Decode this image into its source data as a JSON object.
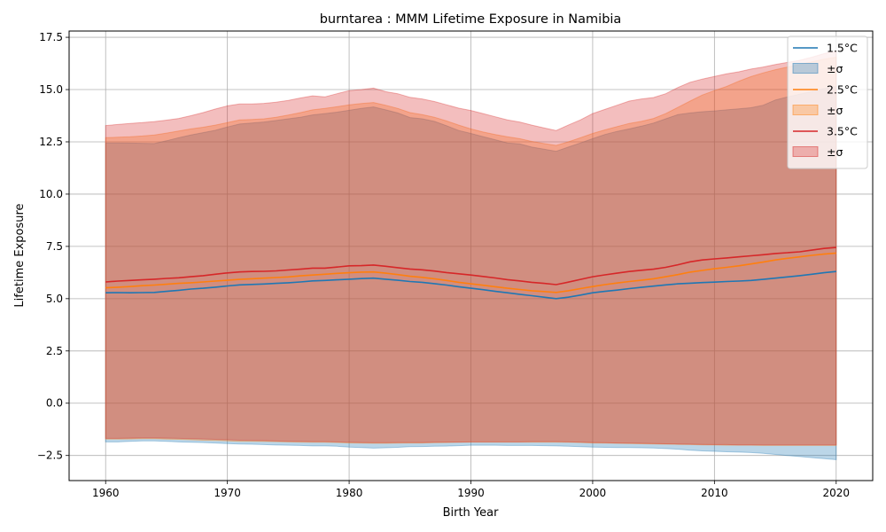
{
  "chart_data": {
    "type": "area",
    "title": "burntarea : MMM Lifetime Exposure in Namibia",
    "xlabel": "Birth Year",
    "ylabel": "Lifetime Exposure",
    "xlim": [
      1957,
      2023
    ],
    "ylim": [
      -3.7,
      17.8
    ],
    "xticks": [
      1960,
      1970,
      1980,
      1990,
      2000,
      2010,
      2020
    ],
    "yticks": [
      -2.5,
      0.0,
      2.5,
      5.0,
      7.5,
      10.0,
      12.5,
      15.0,
      17.5
    ],
    "ytick_labels": [
      "−2.5",
      "0.0",
      "2.5",
      "5.0",
      "7.5",
      "10.0",
      "12.5",
      "15.0",
      "17.5"
    ],
    "grid": true,
    "legend_position": "top-right",
    "x": [
      1960,
      1961,
      1962,
      1963,
      1964,
      1965,
      1966,
      1967,
      1968,
      1969,
      1970,
      1971,
      1972,
      1973,
      1974,
      1975,
      1976,
      1977,
      1978,
      1979,
      1980,
      1981,
      1982,
      1983,
      1984,
      1985,
      1986,
      1987,
      1988,
      1989,
      1990,
      1991,
      1992,
      1993,
      1994,
      1995,
      1996,
      1997,
      1998,
      1999,
      2000,
      2001,
      2002,
      2003,
      2004,
      2005,
      2006,
      2007,
      2008,
      2009,
      2010,
      2011,
      2012,
      2013,
      2014,
      2015,
      2016,
      2017,
      2018,
      2019,
      2020
    ],
    "series": [
      {
        "name": "1.5°C",
        "color": "#1f77b4",
        "values": [
          5.28,
          5.29,
          5.28,
          5.29,
          5.3,
          5.35,
          5.4,
          5.46,
          5.5,
          5.55,
          5.61,
          5.66,
          5.68,
          5.7,
          5.73,
          5.76,
          5.8,
          5.85,
          5.87,
          5.9,
          5.93,
          5.96,
          5.98,
          5.93,
          5.88,
          5.82,
          5.78,
          5.72,
          5.65,
          5.57,
          5.5,
          5.43,
          5.35,
          5.28,
          5.21,
          5.14,
          5.07,
          5.0,
          5.07,
          5.17,
          5.28,
          5.35,
          5.41,
          5.48,
          5.54,
          5.6,
          5.66,
          5.71,
          5.74,
          5.77,
          5.79,
          5.82,
          5.84,
          5.87,
          5.92,
          5.98,
          6.04,
          6.1,
          6.17,
          6.24,
          6.3
        ],
        "upper": [
          12.45,
          12.45,
          12.44,
          12.43,
          12.42,
          12.55,
          12.7,
          12.83,
          12.94,
          13.05,
          13.21,
          13.35,
          13.4,
          13.45,
          13.52,
          13.6,
          13.68,
          13.79,
          13.85,
          13.92,
          14.01,
          14.1,
          14.17,
          14.03,
          13.88,
          13.66,
          13.6,
          13.48,
          13.27,
          13.04,
          12.9,
          12.75,
          12.6,
          12.45,
          12.4,
          12.25,
          12.15,
          12.05,
          12.25,
          12.45,
          12.65,
          12.85,
          13.0,
          13.12,
          13.25,
          13.4,
          13.6,
          13.8,
          13.88,
          13.94,
          13.98,
          14.03,
          14.08,
          14.13,
          14.25,
          14.5,
          14.65,
          14.78,
          14.9,
          15.05,
          15.15
        ],
        "lower": [
          -1.85,
          -1.85,
          -1.82,
          -1.8,
          -1.8,
          -1.82,
          -1.85,
          -1.87,
          -1.88,
          -1.9,
          -1.93,
          -1.95,
          -1.96,
          -1.98,
          -2.0,
          -2.01,
          -2.02,
          -2.04,
          -2.04,
          -2.06,
          -2.1,
          -2.12,
          -2.15,
          -2.13,
          -2.11,
          -2.08,
          -2.07,
          -2.06,
          -2.05,
          -2.03,
          -2.01,
          -2.01,
          -2.01,
          -2.02,
          -2.02,
          -2.02,
          -2.03,
          -2.04,
          -2.06,
          -2.08,
          -2.1,
          -2.11,
          -2.12,
          -2.12,
          -2.13,
          -2.14,
          -2.17,
          -2.2,
          -2.25,
          -2.28,
          -2.3,
          -2.32,
          -2.34,
          -2.36,
          -2.4,
          -2.45,
          -2.5,
          -2.55,
          -2.6,
          -2.65,
          -2.7
        ]
      },
      {
        "name": "2.5°C",
        "color": "#ff7f0e",
        "values": [
          5.52,
          5.55,
          5.58,
          5.62,
          5.65,
          5.69,
          5.73,
          5.76,
          5.8,
          5.84,
          5.88,
          5.92,
          5.95,
          5.98,
          6.01,
          6.04,
          6.09,
          6.13,
          6.17,
          6.21,
          6.24,
          6.27,
          6.28,
          6.22,
          6.15,
          6.07,
          6.02,
          5.95,
          5.87,
          5.78,
          5.71,
          5.64,
          5.57,
          5.5,
          5.44,
          5.38,
          5.34,
          5.3,
          5.38,
          5.48,
          5.58,
          5.67,
          5.75,
          5.82,
          5.88,
          5.95,
          6.05,
          6.15,
          6.27,
          6.35,
          6.43,
          6.5,
          6.57,
          6.66,
          6.75,
          6.85,
          6.93,
          7.0,
          7.07,
          7.13,
          7.18
        ],
        "upper": [
          12.7,
          12.72,
          12.74,
          12.78,
          12.83,
          12.92,
          13.02,
          13.12,
          13.2,
          13.3,
          13.42,
          13.55,
          13.57,
          13.6,
          13.68,
          13.78,
          13.9,
          14.03,
          14.1,
          14.18,
          14.27,
          14.33,
          14.38,
          14.25,
          14.1,
          13.9,
          13.8,
          13.68,
          13.5,
          13.3,
          13.12,
          12.97,
          12.85,
          12.74,
          12.65,
          12.52,
          12.42,
          12.33,
          12.5,
          12.7,
          12.9,
          13.07,
          13.23,
          13.38,
          13.48,
          13.62,
          13.85,
          14.15,
          14.45,
          14.74,
          14.95,
          15.15,
          15.4,
          15.62,
          15.8,
          15.95,
          16.08,
          16.2,
          16.33,
          16.45,
          16.55
        ],
        "lower": [
          -1.72,
          -1.72,
          -1.71,
          -1.7,
          -1.7,
          -1.72,
          -1.73,
          -1.75,
          -1.77,
          -1.78,
          -1.8,
          -1.82,
          -1.82,
          -1.83,
          -1.84,
          -1.85,
          -1.86,
          -1.87,
          -1.87,
          -1.88,
          -1.9,
          -1.91,
          -1.92,
          -1.92,
          -1.91,
          -1.9,
          -1.9,
          -1.89,
          -1.88,
          -1.87,
          -1.86,
          -1.86,
          -1.86,
          -1.86,
          -1.86,
          -1.86,
          -1.86,
          -1.86,
          -1.87,
          -1.88,
          -1.9,
          -1.91,
          -1.92,
          -1.93,
          -1.94,
          -1.95,
          -1.96,
          -1.97,
          -1.98,
          -1.99,
          -2.0,
          -2.01,
          -2.01,
          -2.01,
          -2.02,
          -2.02,
          -2.02,
          -2.02,
          -2.02,
          -2.02,
          -2.02
        ]
      },
      {
        "name": "3.5°C",
        "color": "#d62728",
        "values": [
          5.8,
          5.84,
          5.87,
          5.9,
          5.93,
          5.97,
          6.0,
          6.05,
          6.1,
          6.17,
          6.23,
          6.28,
          6.3,
          6.31,
          6.33,
          6.37,
          6.41,
          6.46,
          6.46,
          6.51,
          6.57,
          6.58,
          6.61,
          6.55,
          6.48,
          6.42,
          6.38,
          6.32,
          6.25,
          6.19,
          6.13,
          6.06,
          5.99,
          5.91,
          5.85,
          5.78,
          5.73,
          5.67,
          5.79,
          5.92,
          6.05,
          6.14,
          6.22,
          6.3,
          6.36,
          6.41,
          6.5,
          6.62,
          6.76,
          6.85,
          6.9,
          6.95,
          7.0,
          7.05,
          7.1,
          7.16,
          7.2,
          7.24,
          7.32,
          7.4,
          7.45
        ],
        "upper": [
          13.28,
          13.33,
          13.38,
          13.42,
          13.47,
          13.54,
          13.62,
          13.75,
          13.9,
          14.07,
          14.22,
          14.31,
          14.31,
          14.34,
          14.4,
          14.48,
          14.6,
          14.7,
          14.65,
          14.8,
          14.95,
          15.0,
          15.07,
          14.9,
          14.8,
          14.63,
          14.55,
          14.43,
          14.27,
          14.11,
          14.0,
          13.85,
          13.7,
          13.55,
          13.45,
          13.3,
          13.17,
          13.04,
          13.3,
          13.55,
          13.85,
          14.05,
          14.25,
          14.45,
          14.55,
          14.62,
          14.8,
          15.1,
          15.35,
          15.5,
          15.63,
          15.75,
          15.85,
          15.98,
          16.08,
          16.2,
          16.3,
          16.4,
          16.55,
          16.72,
          16.85
        ],
        "lower": [
          -1.68,
          -1.68,
          -1.67,
          -1.66,
          -1.66,
          -1.67,
          -1.68,
          -1.7,
          -1.71,
          -1.73,
          -1.75,
          -1.77,
          -1.78,
          -1.79,
          -1.81,
          -1.82,
          -1.83,
          -1.84,
          -1.84,
          -1.85,
          -1.87,
          -1.88,
          -1.89,
          -1.89,
          -1.88,
          -1.88,
          -1.88,
          -1.87,
          -1.86,
          -1.86,
          -1.85,
          -1.85,
          -1.85,
          -1.85,
          -1.85,
          -1.84,
          -1.84,
          -1.84,
          -1.85,
          -1.86,
          -1.88,
          -1.89,
          -1.9,
          -1.91,
          -1.92,
          -1.93,
          -1.94,
          -1.95,
          -1.96,
          -1.97,
          -1.98,
          -1.98,
          -1.99,
          -1.99,
          -1.99,
          -1.99,
          -1.99,
          -1.99,
          -1.99,
          -1.99,
          -1.99
        ]
      }
    ],
    "legend": [
      {
        "label": "1.5°C",
        "kind": "line",
        "color": "#1f77b4"
      },
      {
        "label": "±σ",
        "kind": "patch",
        "color": "#1f77b4"
      },
      {
        "label": "2.5°C",
        "kind": "line",
        "color": "#ff7f0e"
      },
      {
        "label": "±σ",
        "kind": "patch",
        "color": "#ff7f0e"
      },
      {
        "label": "3.5°C",
        "kind": "line",
        "color": "#d62728"
      },
      {
        "label": "±σ",
        "kind": "patch",
        "color": "#d62728"
      }
    ]
  }
}
